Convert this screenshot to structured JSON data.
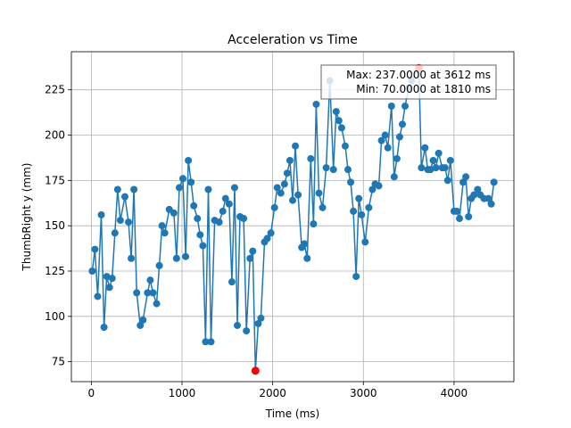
{
  "chart_data": {
    "type": "line",
    "title": "Acceleration vs Time",
    "xlabel": "Time (ms)",
    "ylabel": "ThumbRight y (mm)",
    "xlim": [
      -220,
      4660
    ],
    "ylim": [
      64,
      246
    ],
    "x_ticks": [
      0,
      1000,
      2000,
      3000,
      4000
    ],
    "y_ticks": [
      75,
      100,
      125,
      150,
      175,
      200,
      225
    ],
    "grid": true,
    "series_color": "#1f77b4",
    "marker_highlight_color": "#ff0000",
    "annotation": {
      "line1": "Max: 237.0000 at 3612 ms",
      "line2": "Min: 70.0000 at 1810 ms"
    },
    "max_point": {
      "x": 3612,
      "y": 237
    },
    "min_point": {
      "x": 1810,
      "y": 70
    },
    "points": [
      [
        10,
        125
      ],
      [
        40,
        137
      ],
      [
        70,
        111
      ],
      [
        110,
        156
      ],
      [
        140,
        94
      ],
      [
        170,
        122
      ],
      [
        200,
        116
      ],
      [
        230,
        121
      ],
      [
        260,
        146
      ],
      [
        290,
        170
      ],
      [
        320,
        153
      ],
      [
        370,
        166
      ],
      [
        410,
        152
      ],
      [
        440,
        132
      ],
      [
        470,
        170
      ],
      [
        500,
        113
      ],
      [
        540,
        95
      ],
      [
        570,
        98
      ],
      [
        620,
        113
      ],
      [
        650,
        120
      ],
      [
        680,
        113
      ],
      [
        720,
        107
      ],
      [
        750,
        128
      ],
      [
        780,
        150
      ],
      [
        810,
        146
      ],
      [
        860,
        159
      ],
      [
        910,
        157
      ],
      [
        940,
        132
      ],
      [
        970,
        171
      ],
      [
        1010,
        176
      ],
      [
        1040,
        133
      ],
      [
        1070,
        186
      ],
      [
        1100,
        174
      ],
      [
        1130,
        161
      ],
      [
        1170,
        154
      ],
      [
        1200,
        145
      ],
      [
        1230,
        139
      ],
      [
        1260,
        86
      ],
      [
        1290,
        170
      ],
      [
        1320,
        86
      ],
      [
        1360,
        153
      ],
      [
        1410,
        152
      ],
      [
        1450,
        158
      ],
      [
        1480,
        165
      ],
      [
        1520,
        162
      ],
      [
        1550,
        119
      ],
      [
        1580,
        171
      ],
      [
        1610,
        95
      ],
      [
        1640,
        155
      ],
      [
        1680,
        154
      ],
      [
        1710,
        92
      ],
      [
        1750,
        132
      ],
      [
        1780,
        136
      ],
      [
        1810,
        70
      ],
      [
        1840,
        96
      ],
      [
        1870,
        99
      ],
      [
        1910,
        141
      ],
      [
        1940,
        143
      ],
      [
        1980,
        146
      ],
      [
        2020,
        160
      ],
      [
        2050,
        171
      ],
      [
        2090,
        168
      ],
      [
        2130,
        173
      ],
      [
        2160,
        179
      ],
      [
        2190,
        186
      ],
      [
        2220,
        164
      ],
      [
        2250,
        194
      ],
      [
        2280,
        167
      ],
      [
        2320,
        138
      ],
      [
        2350,
        140
      ],
      [
        2380,
        132
      ],
      [
        2420,
        187
      ],
      [
        2450,
        151
      ],
      [
        2480,
        217
      ],
      [
        2510,
        168
      ],
      [
        2550,
        160
      ],
      [
        2590,
        182
      ],
      [
        2630,
        230
      ],
      [
        2670,
        181
      ],
      [
        2700,
        213
      ],
      [
        2730,
        208
      ],
      [
        2760,
        204
      ],
      [
        2800,
        194
      ],
      [
        2830,
        181
      ],
      [
        2860,
        174
      ],
      [
        2890,
        158
      ],
      [
        2920,
        122
      ],
      [
        2950,
        165
      ],
      [
        2980,
        156
      ],
      [
        3020,
        141
      ],
      [
        3060,
        160
      ],
      [
        3100,
        170
      ],
      [
        3130,
        173
      ],
      [
        3170,
        172
      ],
      [
        3200,
        197
      ],
      [
        3240,
        200
      ],
      [
        3270,
        193
      ],
      [
        3310,
        216
      ],
      [
        3340,
        177
      ],
      [
        3370,
        187
      ],
      [
        3400,
        199
      ],
      [
        3430,
        206
      ],
      [
        3460,
        216
      ],
      [
        3500,
        226
      ],
      [
        3530,
        230
      ],
      [
        3612,
        237
      ],
      [
        3640,
        182
      ],
      [
        3680,
        193
      ],
      [
        3710,
        181
      ],
      [
        3740,
        181
      ],
      [
        3770,
        186
      ],
      [
        3800,
        182
      ],
      [
        3830,
        190
      ],
      [
        3870,
        182
      ],
      [
        3900,
        182
      ],
      [
        3930,
        175
      ],
      [
        3960,
        186
      ],
      [
        4000,
        158
      ],
      [
        4030,
        158
      ],
      [
        4060,
        154
      ],
      [
        4100,
        174
      ],
      [
        4130,
        177
      ],
      [
        4160,
        155
      ],
      [
        4190,
        165
      ],
      [
        4220,
        167
      ],
      [
        4260,
        170
      ],
      [
        4290,
        167
      ],
      [
        4330,
        165
      ],
      [
        4380,
        165
      ],
      [
        4410,
        162
      ],
      [
        4440,
        174
      ]
    ]
  }
}
